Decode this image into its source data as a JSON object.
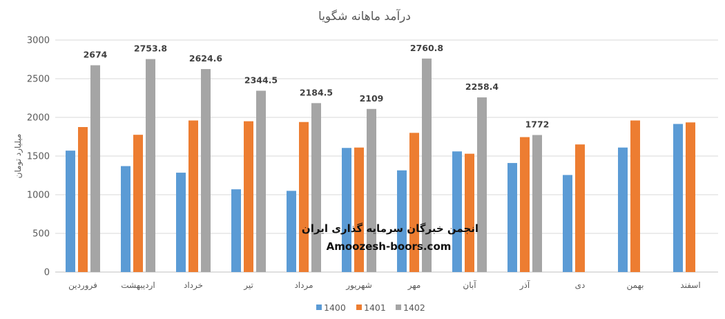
{
  "chart_data": {
    "type": "bar",
    "title": "درآمد ماهانه شگویا",
    "xlabel": "",
    "ylabel": "میلیارد تومان",
    "ylim": [
      0,
      3000
    ],
    "yticks": [
      0,
      500,
      1000,
      1500,
      2000,
      2500,
      3000
    ],
    "grid": true,
    "legend_position": "bottom",
    "categories": [
      "فروردین",
      "اردیبهشت",
      "خرداد",
      "تیر",
      "مرداد",
      "شهریور",
      "مهر",
      "آبان",
      "آذر",
      "دی",
      "بهمن",
      "اسفند"
    ],
    "series": [
      {
        "name": "1400",
        "color": "#5B9BD5",
        "values": [
          1570,
          1370,
          1285,
          1070,
          1050,
          1605,
          1315,
          1560,
          1410,
          1255,
          1610,
          1915
        ]
      },
      {
        "name": "1401",
        "color": "#ED7D31",
        "values": [
          1875,
          1775,
          1960,
          1950,
          1940,
          1610,
          1800,
          1530,
          1745,
          1650,
          1960,
          1935
        ]
      },
      {
        "name": "1402",
        "color": "#A5A5A5",
        "values": [
          2674,
          2753.8,
          2624.6,
          2344.5,
          2184.5,
          2109,
          2760.8,
          2258.4,
          1772,
          null,
          null,
          null
        ],
        "data_labels": [
          "2674",
          "2753.8",
          "2624.6",
          "2344.5",
          "2184.5",
          "2109",
          "2760.8",
          "2258.4",
          "1772",
          null,
          null,
          null
        ]
      }
    ]
  },
  "watermark": {
    "line1": "انجمن خبرگان سرمایه گذاری ایران",
    "line2": "Amoozesh-boors.com"
  }
}
